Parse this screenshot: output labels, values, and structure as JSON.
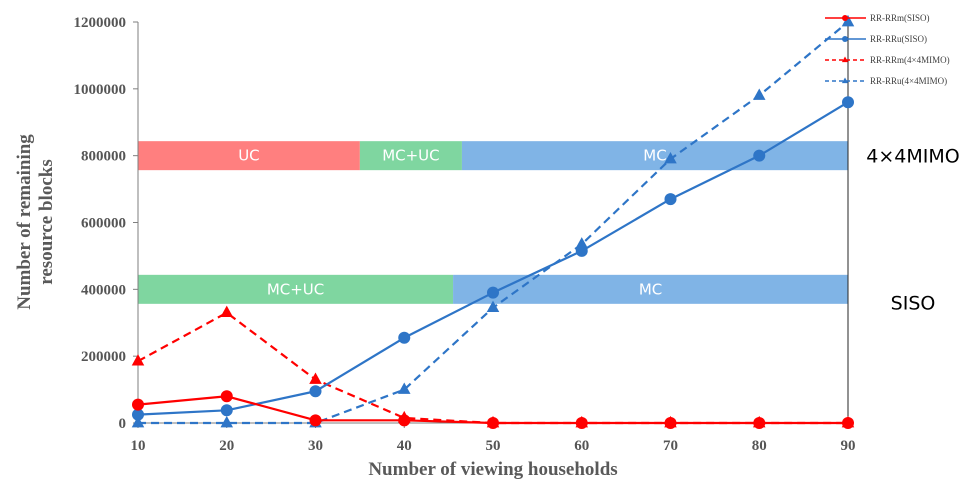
{
  "chart_data": {
    "type": "line",
    "xlabel": "Number of viewing households",
    "ylabel_lines": [
      "Number of remaining",
      "resource blocks"
    ],
    "x": [
      10,
      20,
      30,
      40,
      50,
      60,
      70,
      80,
      90
    ],
    "xlim": [
      10,
      90
    ],
    "ylim": [
      0,
      1200000
    ],
    "x_ticks": [
      "10",
      "20",
      "30",
      "40",
      "50",
      "60",
      "70",
      "80",
      "90"
    ],
    "y_ticks": [
      "0",
      "200000",
      "400000",
      "600000",
      "800000",
      "1000000",
      "1200000"
    ],
    "grid": false,
    "legend_position": "top-right",
    "series": [
      {
        "name": "RR-RRm(SISO)",
        "color": "#ff0000",
        "dashed": false,
        "marker": "circle",
        "values": [
          55000,
          80000,
          8000,
          8000,
          0,
          0,
          0,
          0,
          0
        ]
      },
      {
        "name": "RR-RRu(SISO)",
        "color": "#2e75c7",
        "dashed": false,
        "marker": "circle",
        "values": [
          25000,
          38000,
          95000,
          255000,
          390000,
          515000,
          670000,
          800000,
          960000
        ]
      },
      {
        "name": "RR-RRm(4×4MIMO)",
        "color": "#ff0000",
        "dashed": true,
        "marker": "triangle",
        "values": [
          185000,
          330000,
          130000,
          15000,
          0,
          0,
          0,
          0,
          0
        ]
      },
      {
        "name": "RR-RRu(4×4MIMO)",
        "color": "#2e75c7",
        "dashed": true,
        "marker": "triangle",
        "values": [
          0,
          0,
          0,
          100000,
          345000,
          535000,
          790000,
          980000,
          1200000
        ]
      }
    ],
    "bands": [
      {
        "label": "UC",
        "x_start": 10,
        "x_end": 35,
        "y_center": 800000,
        "color": "#ff7f7f"
      },
      {
        "label": "MC+UC",
        "x_start": 35,
        "x_end": 46.5,
        "y_center": 800000,
        "color": "#7fd6a0"
      },
      {
        "label": "MC",
        "x_start": 46.5,
        "x_end": 90,
        "y_center": 800000,
        "color": "#80b4e6"
      },
      {
        "label": "MC+UC",
        "x_start": 10,
        "x_end": 45.5,
        "y_center": 400000,
        "color": "#7fd6a0"
      },
      {
        "label": "MC",
        "x_start": 45.5,
        "x_end": 90,
        "y_center": 400000,
        "color": "#80b4e6"
      }
    ],
    "side_labels": [
      {
        "text": "4×4MIMO",
        "y": 800000
      },
      {
        "text": "SISO",
        "y": 360000
      }
    ]
  }
}
